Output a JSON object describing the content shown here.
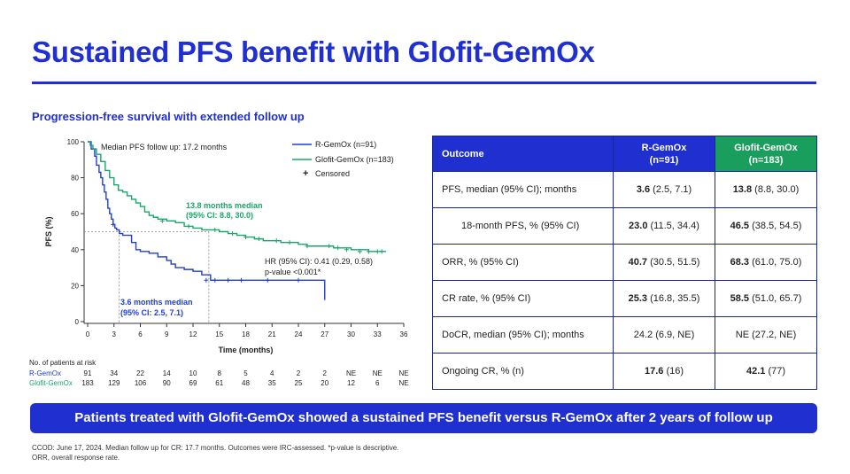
{
  "slide": {
    "title": "Sustained PFS benefit with Glofit-GemOx",
    "subtitle": "Progression-free survival with extended follow up",
    "banner": "Patients treated with Glofit-GemOx showed a sustained PFS benefit versus R-GemOx after 2 years of follow up",
    "footnote_1": "CCOD: June 17, 2024. Median follow up for CR: 17.7 months. Outcomes were IRC-assessed. *p-value is descriptive.",
    "footnote_2": "ORR, overall response rate."
  },
  "colors": {
    "brand_blue": "#1f2fd0",
    "r_gemox": "#1f3fd6",
    "glofit_gemox": "#1aa56a"
  },
  "chart_data": {
    "type": "line",
    "subtype": "kaplan-meier",
    "xlabel": "Time (months)",
    "ylabel": "PFS (%)",
    "xlim": [
      0,
      36
    ],
    "ylim": [
      0,
      100
    ],
    "x_ticks": [
      0,
      3,
      6,
      9,
      12,
      15,
      18,
      21,
      24,
      27,
      30,
      33,
      36
    ],
    "y_ticks": [
      0,
      20,
      40,
      60,
      80,
      100
    ],
    "grid": false,
    "legend_position": "top-right",
    "legend": [
      {
        "label": "R-GemOx (n=91)",
        "color": "#1f3fd6"
      },
      {
        "label": "Glofit-GemOx (n=183)",
        "color": "#1aa56a"
      },
      {
        "label": "Censored",
        "symbol": "+"
      }
    ],
    "annotations": {
      "follow_up": "Median PFS follow up: 17.2 months",
      "glofit_median_line1": "13.8 months median",
      "glofit_median_line2": "(95% CI: 8.8, 30.0)",
      "rgemox_median_line1": "3.6 months median",
      "rgemox_median_line2": "(95% CI: 2.5, 7.1)",
      "hr_line1": "HR (95% CI): 0.41 (0.29, 0.58)",
      "hr_line2": "p-value <0.001*"
    },
    "medians": {
      "y": 50,
      "r_gemox_x": 3.6,
      "glofit_x": 13.8
    },
    "series": [
      {
        "name": "R-GemOx (n=91)",
        "color": "#1f3fd6",
        "x": [
          0,
          0.4,
          0.8,
          1.0,
          1.3,
          1.5,
          1.7,
          1.9,
          2.1,
          2.3,
          2.5,
          2.7,
          2.9,
          3.1,
          3.3,
          3.6,
          4.0,
          4.5,
          5.0,
          5.5,
          6.0,
          7.0,
          8.0,
          9.0,
          9.5,
          10.0,
          11.0,
          12.0,
          13.0,
          14.0,
          15.0,
          20.0,
          27.0,
          27.0
        ],
        "y": [
          100,
          96,
          92,
          87,
          83,
          80,
          76,
          72,
          68,
          63,
          60,
          57,
          54,
          52,
          51,
          49,
          48,
          48,
          44,
          40,
          39,
          38,
          36,
          34,
          32,
          30,
          29,
          28,
          26,
          23,
          23,
          23,
          23,
          12
        ],
        "censored": {
          "x": [
            2.9,
            13.5,
            14.5,
            16.0,
            17.5,
            20.5,
            24.0
          ],
          "y": [
            54,
            23,
            23,
            23,
            23,
            23,
            23
          ]
        }
      },
      {
        "name": "Glofit-GemOx (n=183)",
        "color": "#1aa56a",
        "x": [
          0,
          0.3,
          0.6,
          1.0,
          1.5,
          2.0,
          2.5,
          3.0,
          3.5,
          4.0,
          4.5,
          5.0,
          5.5,
          6.0,
          6.5,
          7.0,
          7.5,
          8.0,
          9.0,
          10.0,
          11.0,
          12.0,
          13.0,
          14.0,
          15.0,
          16.0,
          17.0,
          18.0,
          19.0,
          20.0,
          21.0,
          22.0,
          24.0,
          25.0,
          26.0,
          27.0,
          28.0,
          30.0,
          32.0,
          34.0
        ],
        "y": [
          100,
          98,
          96,
          93,
          89,
          84,
          80,
          76,
          73,
          72,
          70,
          68,
          66,
          64,
          61,
          59,
          58,
          57,
          56,
          55,
          53,
          52,
          51,
          51,
          50,
          49,
          48,
          47,
          46,
          45,
          45,
          44,
          43,
          42,
          42,
          42,
          41,
          40,
          39,
          39
        ],
        "censored": {
          "x": [
            8.5,
            11.5,
            14.5,
            16.5,
            18.0,
            19.5,
            21.5,
            23.0,
            25.0,
            27.5,
            28.5,
            29.5,
            31.0,
            32.0,
            33.0,
            33.5
          ],
          "y": [
            56,
            53,
            51,
            49,
            47,
            46,
            45,
            44,
            42,
            42,
            41,
            40,
            39,
            39,
            39,
            39
          ]
        }
      }
    ],
    "risk_table": {
      "title": "No. of patients at risk",
      "times": [
        0,
        3,
        6,
        9,
        12,
        15,
        18,
        21,
        24,
        27,
        30,
        33,
        36
      ],
      "rows": [
        {
          "label": "R-GemOx",
          "values": [
            "91",
            "34",
            "22",
            "14",
            "10",
            "8",
            "5",
            "4",
            "2",
            "2",
            "NE",
            "NE",
            "NE"
          ],
          "color": "#1f3fd6"
        },
        {
          "label": "Glofit-GemOx",
          "values": [
            "183",
            "129",
            "106",
            "90",
            "69",
            "61",
            "48",
            "35",
            "25",
            "20",
            "12",
            "6",
            "NE"
          ],
          "color": "#1aa56a"
        }
      ]
    }
  },
  "outcomes_table": {
    "headers": {
      "outcome": "Outcome",
      "r_gemox_line1": "R-GemOx",
      "r_gemox_line2": "(n=91)",
      "glofit_line1": "Glofit-GemOx",
      "glofit_line2": "(n=183)"
    },
    "rows": [
      {
        "label": "PFS, median (95% CI); months",
        "indent": false,
        "r_bold": "3.6",
        "r_rest": " (2.5, 7.1)",
        "g_bold": "13.8",
        "g_rest": " (8.8, 30.0)"
      },
      {
        "label": "18-month PFS, % (95% CI)",
        "indent": true,
        "r_bold": "23.0",
        "r_rest": " (11.5, 34.4)",
        "g_bold": "46.5",
        "g_rest": " (38.5, 54.5)"
      },
      {
        "label": "ORR, % (95% CI)",
        "indent": false,
        "r_bold": "40.7",
        "r_rest": " (30.5, 51.5)",
        "g_bold": "68.3",
        "g_rest": " (61.0, 75.0)"
      },
      {
        "label": "CR rate, % (95% CI)",
        "indent": false,
        "r_bold": "25.3",
        "r_rest": " (16.8, 35.5)",
        "g_bold": "58.5",
        "g_rest": " (51.0, 65.7)"
      },
      {
        "label": "DoCR, median (95% CI); months",
        "indent": false,
        "r_bold": "",
        "r_rest": "24.2 (6.9, NE)",
        "g_bold": "",
        "g_rest": "NE (27.2, NE)"
      },
      {
        "label": "Ongoing CR, % (n)",
        "indent": false,
        "r_bold": "17.6",
        "r_rest": " (16)",
        "g_bold": "42.1",
        "g_rest": " (77)"
      }
    ]
  }
}
